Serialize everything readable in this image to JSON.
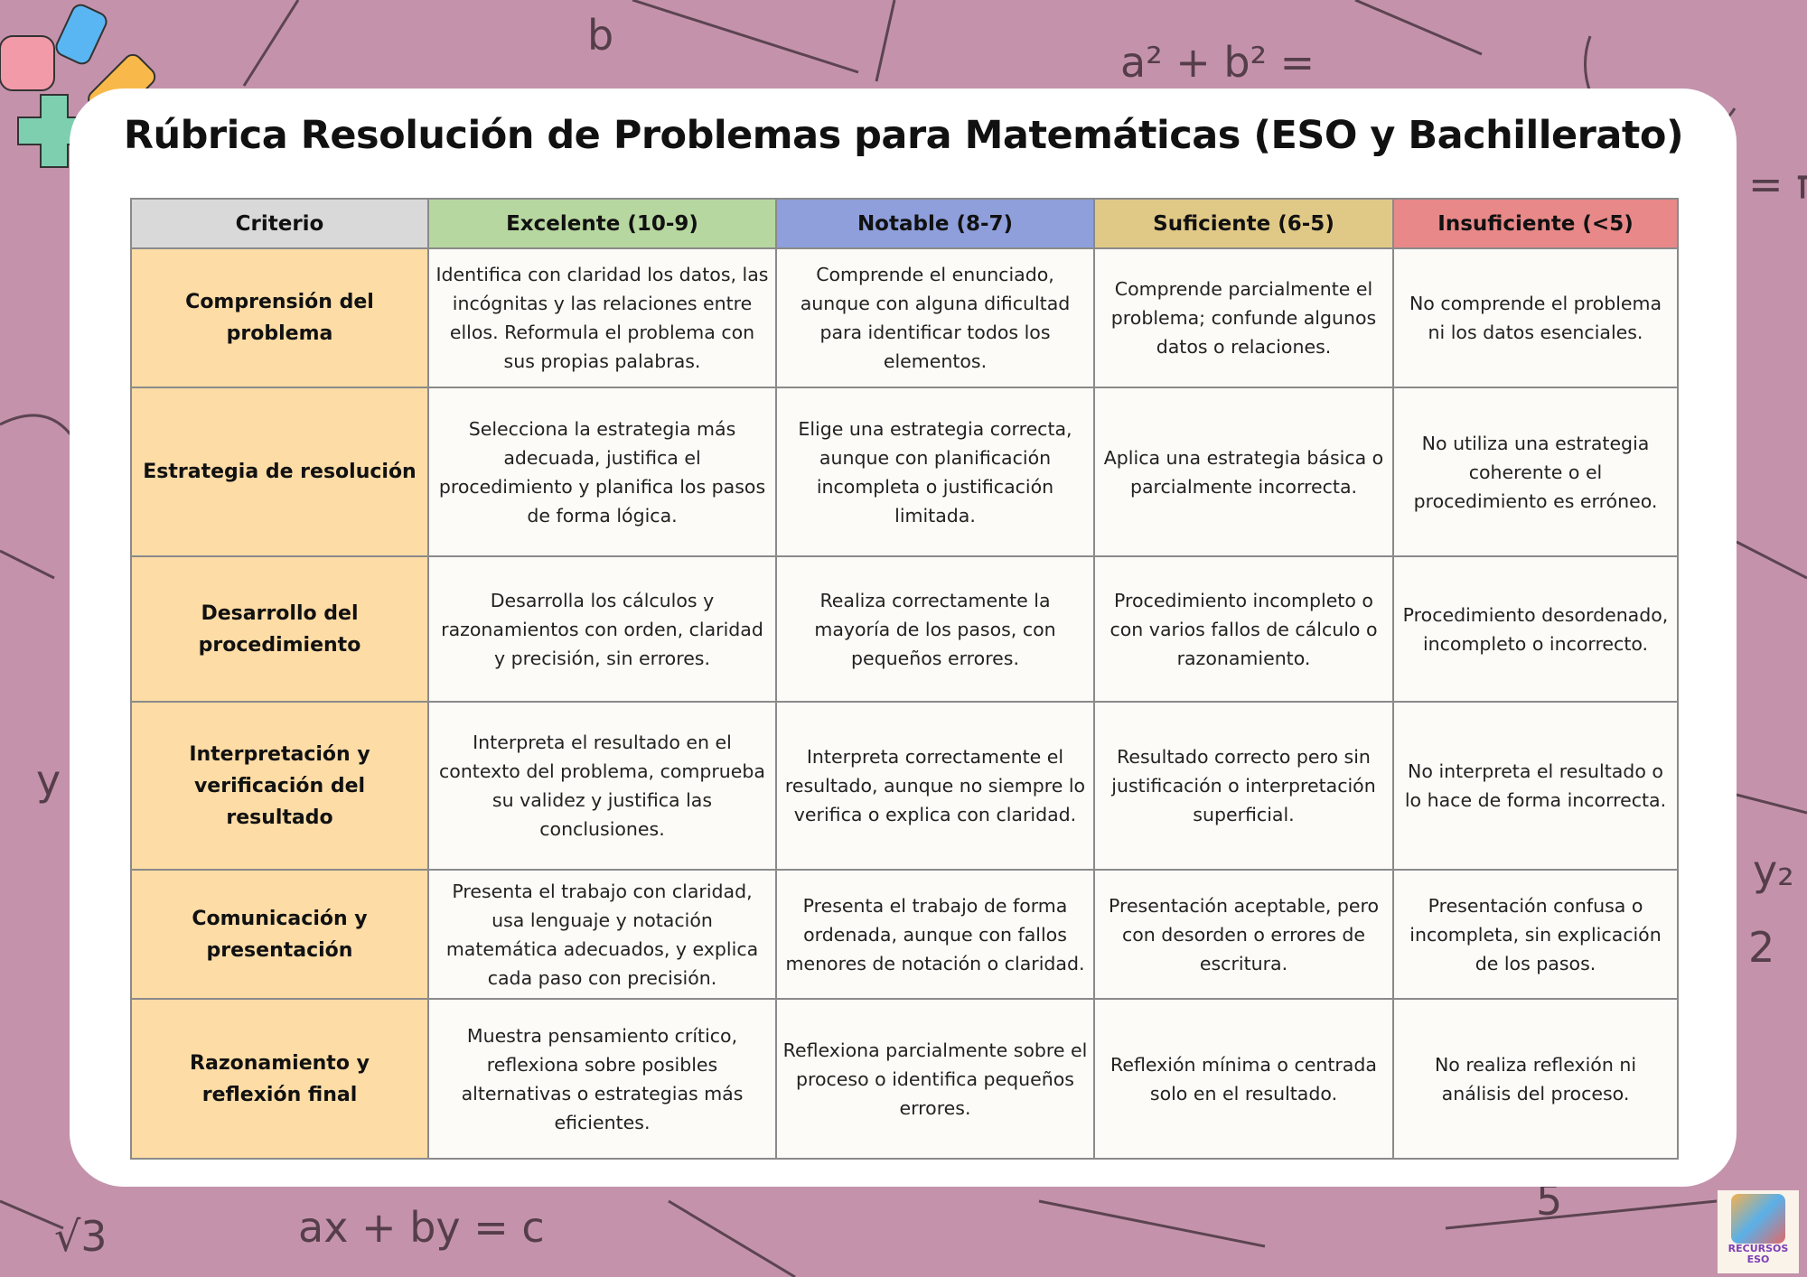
{
  "title": "Rúbrica  Resolución de Problemas para Matemáticas (ESO y Bachillerato)",
  "colors": {
    "background": "#c493ab",
    "criterio_header": "#d9d9d9",
    "excelente": "#b7d7a0",
    "notable": "#8e9fdb",
    "suficiente": "#e0c987",
    "insuficiente": "#e88888",
    "criterio_cell": "#fddca6"
  },
  "background_math": [
    "a² + b² =",
    "ax + by = c",
    "√3",
    "= π",
    "y₂",
    "2",
    "y",
    "b",
    "5"
  ],
  "logo": {
    "text": "RECURSOS ESO"
  },
  "table": {
    "headers": [
      "Criterio",
      "Excelente (10-9)",
      "Notable (8-7)",
      "Suficiente (6-5)",
      "Insuficiente (<5)"
    ],
    "rows": [
      {
        "criterio": "Comprensión del problema",
        "cells": [
          "Identifica con claridad los datos, las incógnitas y las relaciones entre ellos. Reformula el problema con sus propias palabras.",
          "Comprende el enunciado, aunque con alguna dificultad para identificar todos los elementos.",
          "Comprende parcialmente el problema; confunde algunos datos o relaciones.",
          "No comprende el problema ni los datos esenciales."
        ]
      },
      {
        "criterio": "Estrategia de resolución",
        "cells": [
          "Selecciona la estrategia más adecuada, justifica el procedimiento y planifica los pasos de forma lógica.",
          "Elige una estrategia correcta, aunque con planificación incompleta o justificación limitada.",
          "Aplica una estrategia básica o parcialmente incorrecta.",
          "No utiliza una estrategia coherente o el procedimiento es erróneo."
        ]
      },
      {
        "criterio": "Desarrollo del procedimiento",
        "cells": [
          "Desarrolla los cálculos y razonamientos con orden, claridad y precisión, sin errores.",
          "Realiza correctamente la mayoría de los pasos, con pequeños errores.",
          "Procedimiento incompleto o con varios fallos de cálculo o razonamiento.",
          "Procedimiento desordenado, incompleto o incorrecto."
        ]
      },
      {
        "criterio": "Interpretación y verificación del resultado",
        "cells": [
          "Interpreta el resultado en el contexto del problema, comprueba su validez y justifica las conclusiones.",
          "Interpreta correctamente el resultado, aunque no siempre lo verifica o explica con claridad.",
          "Resultado correcto pero sin justificación o interpretación superficial.",
          "No interpreta el resultado o lo hace de forma incorrecta."
        ]
      },
      {
        "criterio": "Comunicación y presentación",
        "cells": [
          "Presenta el trabajo con claridad, usa lenguaje y notación matemática adecuados, y explica cada paso con precisión.",
          "Presenta el trabajo de forma ordenada, aunque con fallos menores de notación o claridad.",
          "Presentación aceptable, pero con desorden o errores de escritura.",
          "Presentación confusa o incompleta, sin explicación de los pasos."
        ]
      },
      {
        "criterio": "Razonamiento y reflexión final",
        "cells": [
          "Muestra pensamiento crítico, reflexiona sobre posibles alternativas o estrategias más eficientes.",
          "Reflexiona parcialmente sobre el proceso o identifica pequeños errores.",
          "Reflexión mínima o centrada solo en el resultado.",
          "No realiza reflexión ni análisis del proceso."
        ]
      }
    ]
  }
}
